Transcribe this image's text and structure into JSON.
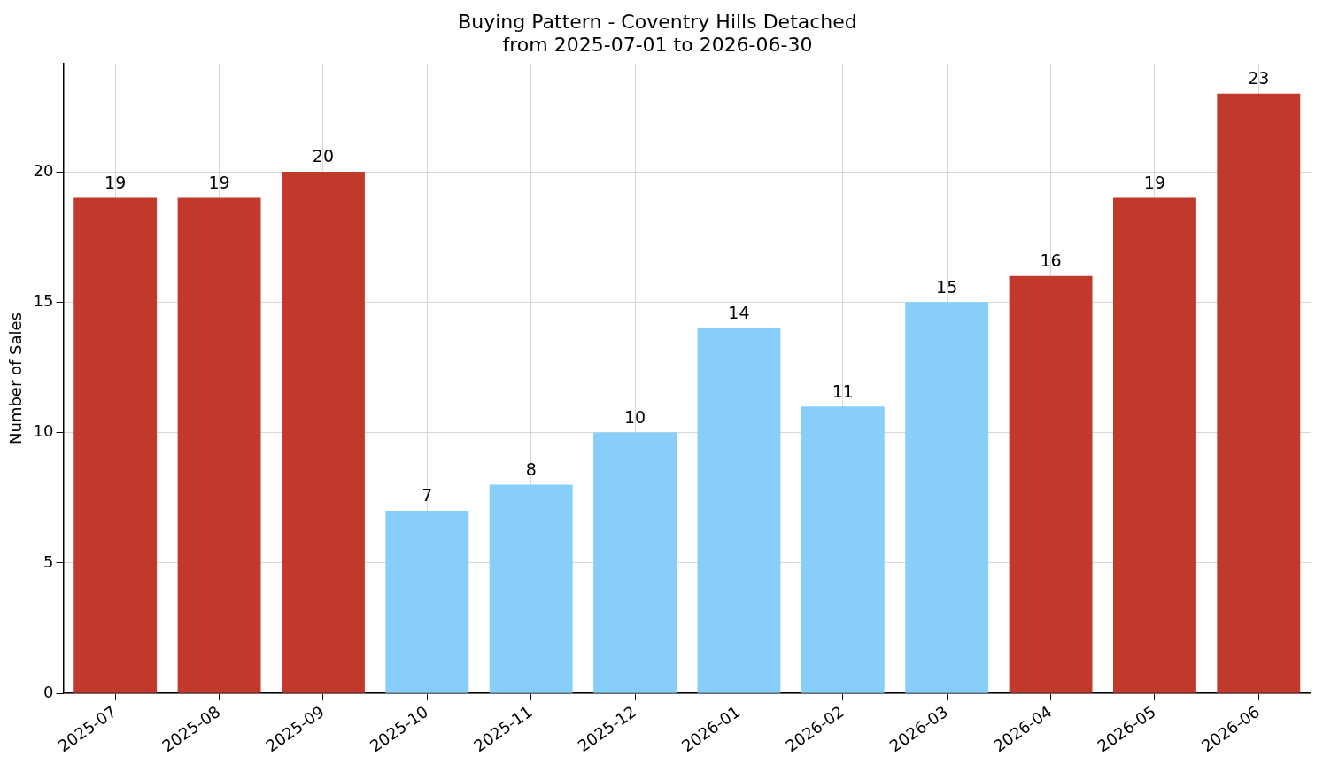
{
  "chart_data": {
    "type": "bar",
    "title": "Buying Pattern - Coventry Hills Detached",
    "subtitle": "from 2025-07-01 to 2026-06-30",
    "ylabel": "Number of Sales",
    "categories": [
      "2025-07",
      "2025-08",
      "2025-09",
      "2025-10",
      "2025-11",
      "2025-12",
      "2026-01",
      "2026-02",
      "2026-03",
      "2026-04",
      "2026-05",
      "2026-06"
    ],
    "values": [
      19,
      19,
      20,
      7,
      8,
      10,
      14,
      11,
      15,
      16,
      19,
      23
    ],
    "colors": [
      "#c0392b",
      "#c0392b",
      "#c0392b",
      "#87cefa",
      "#87cefa",
      "#87cefa",
      "#87cefa",
      "#87cefa",
      "#87cefa",
      "#c0392b",
      "#c0392b",
      "#c0392b"
    ],
    "ylim": [
      0,
      24.15
    ],
    "yticks": [
      0,
      5,
      10,
      15,
      20
    ],
    "grid": true,
    "data_labels": true
  }
}
